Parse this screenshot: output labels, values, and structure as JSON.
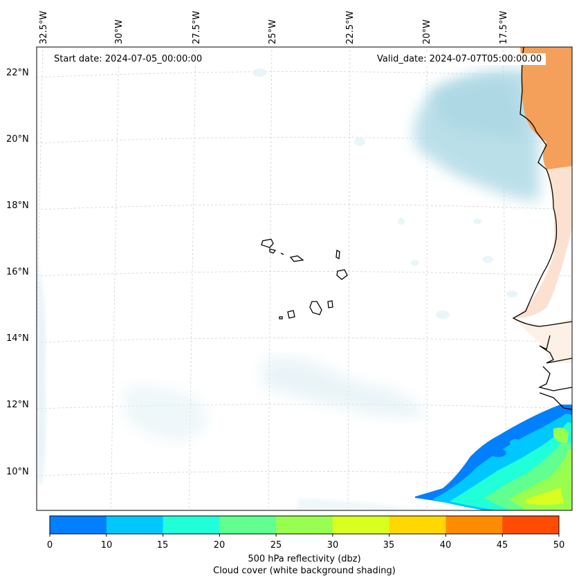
{
  "map": {
    "start_date": "Start date: 2024-07-05_00:00:00",
    "valid_date": "Valid_date: 2024-07-07T05:00:00.00",
    "lon_labels": [
      "32.5°W",
      "30°W",
      "27.5°W",
      "25°W",
      "22.5°W",
      "20°W",
      "17.5°W"
    ],
    "lat_labels": [
      "22°N",
      "20°N",
      "18°N",
      "16°N",
      "14°N",
      "12°N",
      "10°N"
    ],
    "land_color": "#f5a05a",
    "cloud_color": "#b0dae6"
  },
  "colorbar": {
    "ticks": [
      "0",
      "10",
      "15",
      "20",
      "25",
      "30",
      "35",
      "40",
      "45",
      "50"
    ],
    "colors": [
      "#0080ff",
      "#00c8ff",
      "#20ffd8",
      "#60ff90",
      "#98ff50",
      "#d8ff20",
      "#ffd800",
      "#ff8c00",
      "#ff4c00"
    ],
    "label": "500 hPa reflectivity (dbz)",
    "sublabel": "Cloud cover (white background shading)"
  }
}
